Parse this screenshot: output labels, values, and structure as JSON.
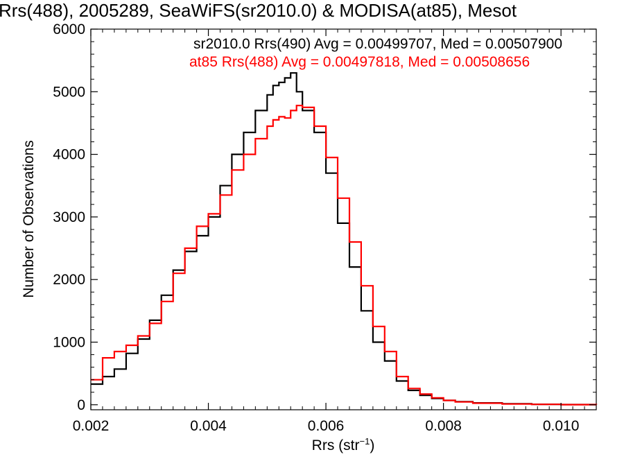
{
  "chart_data": {
    "type": "line",
    "title": "Rrs(488), 2005289, SeaWiFS(sr2010.0) & MODISA(at85), Mesot",
    "xlabel": "Rrs (str",
    "xlabel_sup": "−1",
    "xlabel_close": ")",
    "ylabel": "Number of Observations",
    "xlim": [
      0.002,
      0.0106
    ],
    "ylim": [
      -80,
      6000
    ],
    "x_ticks": [
      {
        "value": 0.002,
        "label": "0.002"
      },
      {
        "value": 0.004,
        "label": "0.004"
      },
      {
        "value": 0.006,
        "label": "0.006"
      },
      {
        "value": 0.008,
        "label": "0.008"
      },
      {
        "value": 0.01,
        "label": "0.010"
      }
    ],
    "y_ticks": [
      {
        "value": 0,
        "label": "0"
      },
      {
        "value": 1000,
        "label": "1000"
      },
      {
        "value": 2000,
        "label": "2000"
      },
      {
        "value": 3000,
        "label": "3000"
      },
      {
        "value": 4000,
        "label": "4000"
      },
      {
        "value": 5000,
        "label": "5000"
      },
      {
        "value": 6000,
        "label": "6000"
      }
    ],
    "grid": false,
    "legend_placement": "top-right",
    "series": [
      {
        "name": "sr2010.0 Rrs(490) Avg = 0.00499707, Med = 0.00507900",
        "color": "#000000",
        "x": [
          0.002,
          0.0022,
          0.0024,
          0.0026,
          0.0028,
          0.003,
          0.0032,
          0.0034,
          0.0036,
          0.0038,
          0.004,
          0.0042,
          0.0044,
          0.0046,
          0.0048,
          0.005,
          0.0051,
          0.0052,
          0.0053,
          0.0054,
          0.0055,
          0.0056,
          0.0058,
          0.006,
          0.0062,
          0.0064,
          0.0066,
          0.0068,
          0.007,
          0.0072,
          0.0074,
          0.0076,
          0.0078,
          0.008,
          0.0082,
          0.0085,
          0.009,
          0.0095,
          0.01,
          0.0106
        ],
        "y": [
          330,
          450,
          570,
          820,
          1050,
          1350,
          1750,
          2150,
          2450,
          2700,
          3000,
          3500,
          4000,
          4350,
          4700,
          4950,
          5100,
          5150,
          5220,
          5300,
          5000,
          4700,
          4350,
          3700,
          2900,
          2200,
          1500,
          1000,
          700,
          380,
          230,
          150,
          100,
          70,
          50,
          30,
          15,
          8,
          3,
          0
        ]
      },
      {
        "name": "at85 Rrs(488) Avg = 0.00497818, Med = 0.00508656",
        "color": "#ff0000",
        "x": [
          0.002,
          0.0022,
          0.0024,
          0.0026,
          0.0028,
          0.003,
          0.0032,
          0.0034,
          0.0036,
          0.0038,
          0.004,
          0.0042,
          0.0044,
          0.0046,
          0.0048,
          0.005,
          0.0051,
          0.0052,
          0.0053,
          0.0054,
          0.0055,
          0.0056,
          0.0058,
          0.006,
          0.0062,
          0.0064,
          0.0066,
          0.0068,
          0.007,
          0.0072,
          0.0074,
          0.0076,
          0.0078,
          0.008,
          0.0082,
          0.0085,
          0.009,
          0.0095,
          0.01,
          0.0106
        ],
        "y": [
          400,
          750,
          850,
          950,
          1100,
          1300,
          1650,
          2100,
          2500,
          2850,
          3050,
          3350,
          3750,
          4000,
          4250,
          4450,
          4550,
          4600,
          4580,
          4700,
          4780,
          4750,
          4450,
          3950,
          3300,
          2600,
          1900,
          1250,
          850,
          450,
          260,
          170,
          110,
          70,
          45,
          25,
          12,
          6,
          2,
          0
        ]
      }
    ]
  }
}
